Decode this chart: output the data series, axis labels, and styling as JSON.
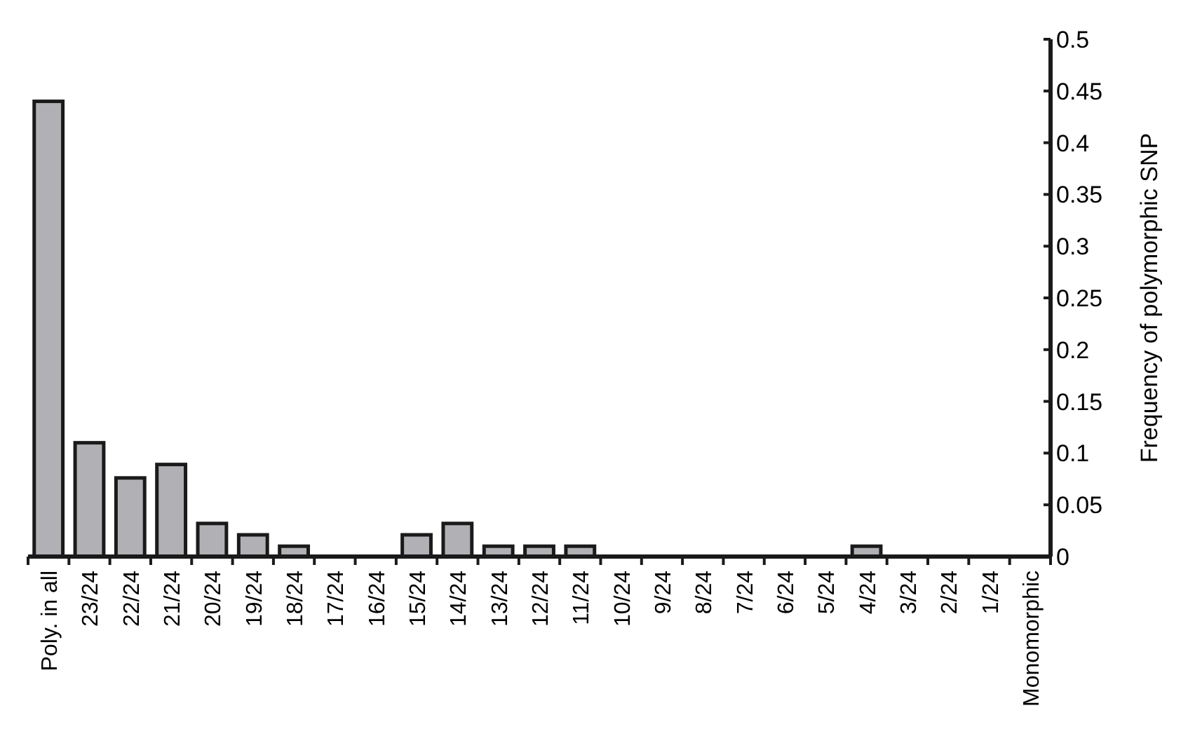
{
  "chart_data": {
    "type": "bar",
    "ylabel": "Frequency of polymorphic SNP",
    "categories": [
      "Poly. in all",
      "23/24",
      "22/24",
      "21/24",
      "20/24",
      "19/24",
      "18/24",
      "17/24",
      "16/24",
      "15/24",
      "14/24",
      "13/24",
      "12/24",
      "11/24",
      "10/24",
      "9/24",
      "8/24",
      "7/24",
      "6/24",
      "5/24",
      "4/24",
      "3/24",
      "2/24",
      "1/24",
      "Monomorphic"
    ],
    "values": [
      0.44,
      0.11,
      0.076,
      0.089,
      0.032,
      0.021,
      0.01,
      0,
      0,
      0.021,
      0.032,
      0.01,
      0.01,
      0.01,
      0,
      0,
      0,
      0,
      0,
      0,
      0.01,
      0,
      0,
      0,
      0
    ],
    "color": "#b1b1b5",
    "ylim": [
      0,
      0.5
    ],
    "yticks": [
      0,
      0.05,
      0.1,
      0.15,
      0.2,
      0.25,
      0.3,
      0.35,
      0.4,
      0.45,
      0.5
    ],
    "grid": false
  }
}
